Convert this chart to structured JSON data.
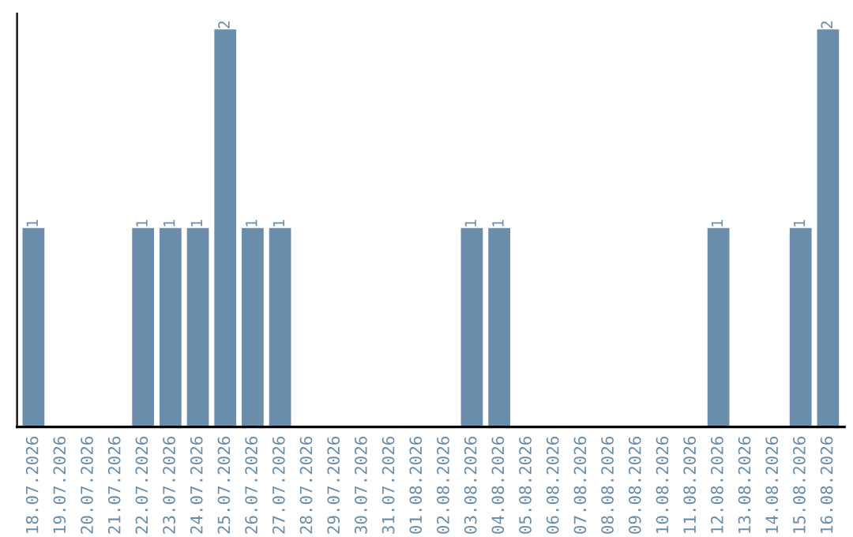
{
  "chart_data": {
    "type": "bar",
    "categories": [
      "18.07.2026",
      "19.07.2026",
      "20.07.2026",
      "21.07.2026",
      "22.07.2026",
      "23.07.2026",
      "24.07.2026",
      "25.07.2026",
      "26.07.2026",
      "27.07.2026",
      "28.07.2026",
      "29.07.2026",
      "30.07.2026",
      "31.07.2026",
      "01.08.2026",
      "02.08.2026",
      "03.08.2026",
      "04.08.2026",
      "05.08.2026",
      "06.08.2026",
      "07.08.2026",
      "08.08.2026",
      "09.08.2026",
      "10.08.2026",
      "11.08.2026",
      "12.08.2026",
      "13.08.2026",
      "14.08.2026",
      "15.08.2026",
      "16.08.2026"
    ],
    "values": [
      1,
      0,
      0,
      0,
      1,
      1,
      1,
      2,
      1,
      1,
      0,
      0,
      0,
      0,
      0,
      0,
      1,
      1,
      0,
      0,
      0,
      0,
      0,
      0,
      0,
      1,
      0,
      0,
      1,
      2
    ],
    "value_labels": [
      "1",
      null,
      null,
      null,
      "1",
      "1",
      "1",
      "2",
      "1",
      "1",
      null,
      null,
      null,
      null,
      null,
      null,
      "1",
      "1",
      null,
      null,
      null,
      null,
      null,
      null,
      null,
      "1",
      null,
      null,
      "1",
      "2"
    ],
    "color": "#6b8dac",
    "grid": false,
    "legend": false
  }
}
